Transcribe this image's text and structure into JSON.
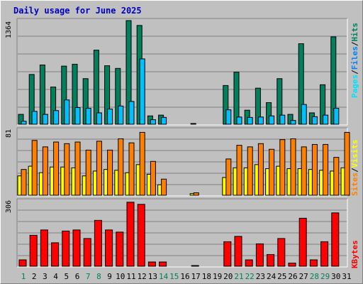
{
  "title": "Daily usage for June 2025",
  "colors": {
    "hits": "#00805c",
    "files": "#00c0ff",
    "pages": "#00e0ff",
    "visits": "#ffff00",
    "sites": "#ff8000",
    "kbytes": "#ff0000",
    "plot_bg": "#c0c0c0",
    "grid": "#808080"
  },
  "chart_data": [
    {
      "type": "bar",
      "panel": "top",
      "max_label": "1364",
      "ylim": [
        0,
        1364
      ],
      "legend": [
        "Pages",
        "Files",
        "Hits"
      ],
      "x": [
        "1",
        "2",
        "3",
        "4",
        "5",
        "6",
        "7",
        "8",
        "9",
        "10",
        "11",
        "12",
        "13",
        "14",
        "15",
        "16",
        "17",
        "18",
        "19",
        "20",
        "21",
        "22",
        "23",
        "24",
        "25",
        "26",
        "27",
        "28",
        "29",
        "30",
        "31"
      ],
      "series": [
        {
          "name": "Hits",
          "values": [
            130,
            655,
            780,
            490,
            765,
            790,
            600,
            975,
            770,
            735,
            1364,
            1300,
            110,
            120,
            0,
            0,
            10,
            0,
            0,
            510,
            685,
            185,
            475,
            285,
            600,
            130,
            1060,
            150,
            520,
            1150,
            0
          ]
        },
        {
          "name": "Files",
          "values": [
            40,
            170,
            130,
            180,
            320,
            220,
            210,
            150,
            200,
            240,
            300,
            860,
            60,
            90,
            0,
            0,
            0,
            0,
            0,
            190,
            95,
            90,
            95,
            110,
            120,
            50,
            260,
            100,
            120,
            210,
            0
          ]
        }
      ]
    },
    {
      "type": "bar",
      "panel": "middle",
      "max_label": "81",
      "ylim": [
        0,
        81
      ],
      "legend": [
        "Sites",
        "Visits"
      ],
      "x": [
        "1",
        "2",
        "3",
        "4",
        "5",
        "6",
        "7",
        "8",
        "9",
        "10",
        "11",
        "12",
        "13",
        "14",
        "15",
        "16",
        "17",
        "18",
        "19",
        "20",
        "21",
        "22",
        "23",
        "24",
        "25",
        "26",
        "27",
        "28",
        "29",
        "30",
        "31"
      ],
      "series": [
        {
          "name": "Sites",
          "values": [
            32,
            68,
            60,
            66,
            64,
            66,
            56,
            67,
            56,
            70,
            65,
            78,
            42,
            20,
            0,
            0,
            3,
            0,
            0,
            45,
            62,
            60,
            64,
            57,
            69,
            70,
            60,
            63,
            63,
            47,
            78
          ]
        },
        {
          "name": "Visits",
          "values": [
            24,
            36,
            28,
            35,
            35,
            34,
            24,
            30,
            32,
            31,
            28,
            38,
            26,
            13,
            0,
            0,
            2,
            0,
            0,
            22,
            34,
            34,
            38,
            33,
            36,
            33,
            33,
            32,
            31,
            30,
            34
          ]
        }
      ]
    },
    {
      "type": "bar",
      "panel": "bottom",
      "max_label": "306",
      "ylim": [
        0,
        306
      ],
      "legend": [
        "KBytes"
      ],
      "x": [
        "1",
        "2",
        "3",
        "4",
        "5",
        "6",
        "7",
        "8",
        "9",
        "10",
        "11",
        "12",
        "13",
        "14",
        "15",
        "16",
        "17",
        "18",
        "19",
        "20",
        "21",
        "22",
        "23",
        "24",
        "25",
        "26",
        "27",
        "28",
        "29",
        "30",
        "31"
      ],
      "series": [
        {
          "name": "KBytes",
          "values": [
            30,
            145,
            170,
            110,
            165,
            170,
            130,
            215,
            170,
            160,
            300,
            290,
            20,
            20,
            0,
            0,
            3,
            0,
            0,
            115,
            140,
            30,
            105,
            55,
            130,
            15,
            225,
            30,
            115,
            250,
            0
          ]
        }
      ]
    }
  ],
  "x_labels": [
    "1",
    "2",
    "3",
    "4",
    "5",
    "6",
    "7",
    "8",
    "9",
    "10",
    "11",
    "12",
    "13",
    "14",
    "15",
    "16",
    "17",
    "18",
    "19",
    "20",
    "21",
    "22",
    "23",
    "24",
    "25",
    "26",
    "27",
    "28",
    "29",
    "30",
    "31"
  ],
  "weekend_days": [
    1,
    7,
    8,
    14,
    15,
    21,
    22,
    28,
    29
  ]
}
